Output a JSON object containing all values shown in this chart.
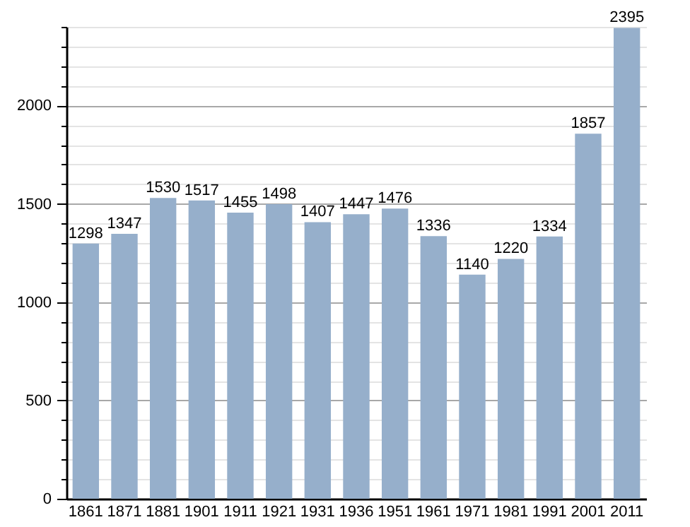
{
  "chart_data": {
    "type": "bar",
    "categories": [
      "1861",
      "1871",
      "1881",
      "1901",
      "1911",
      "1921",
      "1931",
      "1936",
      "1951",
      "1961",
      "1971",
      "1981",
      "1991",
      "2001",
      "2011"
    ],
    "values": [
      1298,
      1347,
      1530,
      1517,
      1455,
      1498,
      1407,
      1447,
      1476,
      1336,
      1140,
      1220,
      1334,
      1857,
      2395
    ],
    "color": "#96afcb",
    "ylim": [
      0,
      2400
    ],
    "yticks": [
      0,
      {
        "value": 100,
        "label": null
      },
      {
        "value": 200,
        "label": null
      },
      {
        "value": 300,
        "label": null
      },
      {
        "value": 400,
        "label": null
      },
      500,
      {
        "value": 600,
        "label": null
      },
      {
        "value": 700,
        "label": null
      },
      {
        "value": 800,
        "label": null
      },
      {
        "value": 900,
        "label": null
      },
      1000,
      {
        "value": 1100,
        "label": null
      },
      {
        "value": 1200,
        "label": null
      },
      {
        "value": 1300,
        "label": null
      },
      {
        "value": 1400,
        "label": null
      },
      1500,
      {
        "value": 1600,
        "label": null
      },
      {
        "value": 1700,
        "label": null
      },
      {
        "value": 1800,
        "label": null
      },
      {
        "value": 1900,
        "label": null
      },
      2000,
      {
        "value": 2100,
        "label": null
      },
      {
        "value": 2200,
        "label": null
      },
      {
        "value": 2300,
        "label": null
      },
      {
        "value": 2400,
        "label": null
      }
    ],
    "grid": true,
    "data_labels": true
  }
}
